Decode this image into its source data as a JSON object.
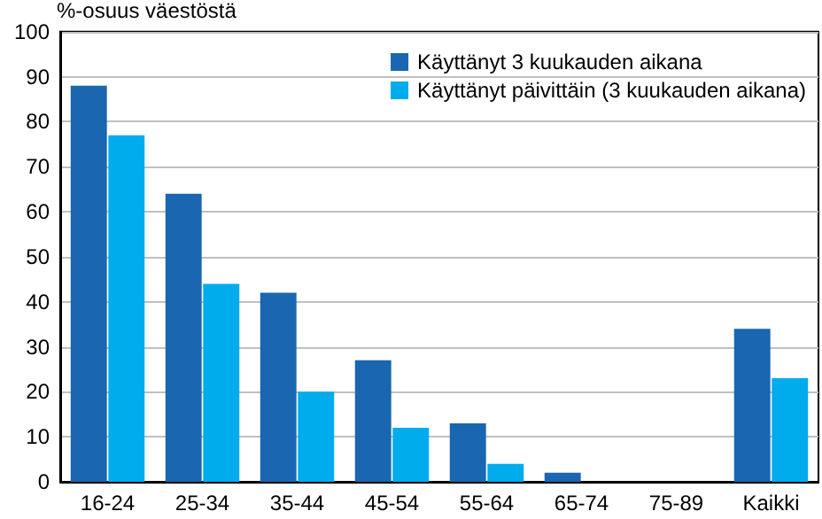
{
  "chart_data": {
    "type": "bar",
    "ylabel": "%-osuus väestöstä",
    "categories": [
      "16-24",
      "25-34",
      "35-44",
      "45-54",
      "55-64",
      "65-74",
      "75-89",
      "Kaikki"
    ],
    "series": [
      {
        "name": "Käyttänyt 3 kuukauden aikana",
        "color": "#1a66b0",
        "values": [
          88,
          64,
          42,
          27,
          13,
          2,
          0,
          34
        ]
      },
      {
        "name": "Käyttänyt päivittäin (3 kuukauden aikana)",
        "color": "#00acec",
        "values": [
          77,
          44,
          20,
          12,
          4,
          0,
          0,
          23
        ]
      }
    ],
    "ylim": [
      0,
      100
    ],
    "yticks": [
      0,
      10,
      20,
      30,
      40,
      50,
      60,
      70,
      80,
      90,
      100
    ],
    "grid": "y",
    "legend": "top right"
  }
}
